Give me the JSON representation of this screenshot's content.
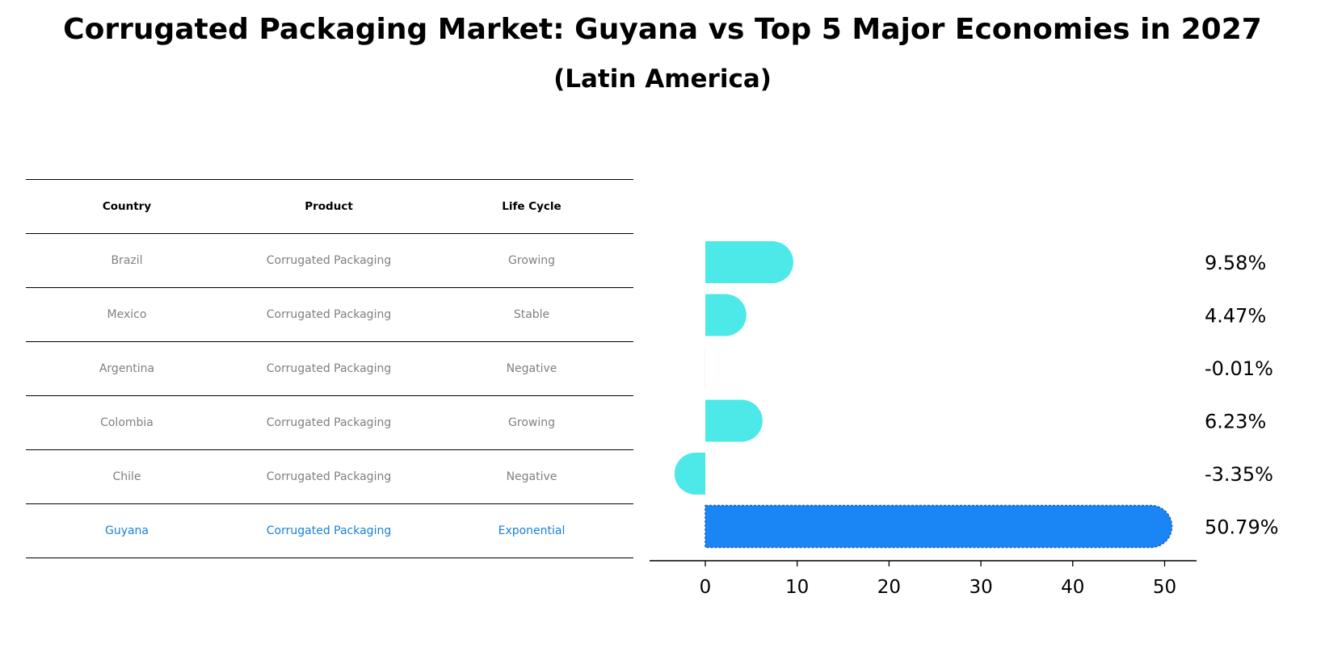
{
  "title": "Corrugated Packaging Market: Guyana vs Top 5 Major Economies in 2027",
  "subtitle": "(Latin America)",
  "table": {
    "headers": [
      "Country",
      "Product",
      "Life Cycle"
    ],
    "rows": [
      [
        "Brazil",
        "Corrugated Packaging",
        "Growing"
      ],
      [
        "Mexico",
        "Corrugated Packaging",
        "Stable"
      ],
      [
        "Argentina",
        "Corrugated Packaging",
        "Negative"
      ],
      [
        "Colombia",
        "Corrugated Packaging",
        "Growing"
      ],
      [
        "Chile",
        "Corrugated Packaging",
        "Negative"
      ],
      [
        "Guyana",
        "Corrugated Packaging",
        "Exponential"
      ]
    ]
  },
  "colors": {
    "bar": "#4de8e8",
    "highlight": "#1a85f5",
    "highlight_text": "#1a80d9",
    "body_text": "#808080"
  },
  "chart_data": {
    "type": "bar",
    "orientation": "horizontal",
    "categories": [
      "Brazil",
      "Mexico",
      "Argentina",
      "Colombia",
      "Chile",
      "Guyana"
    ],
    "values": [
      9.58,
      4.47,
      -0.01,
      6.23,
      -3.35,
      50.79
    ],
    "labels": [
      "9.58%",
      "4.47%",
      "-0.01%",
      "6.23%",
      "-3.35%",
      "50.79%"
    ],
    "highlight": "Guyana",
    "xlim": [
      -6,
      53.5
    ],
    "xticks": [
      0,
      10,
      20,
      30,
      40,
      50
    ],
    "title": "Corrugated Packaging Market: Guyana vs Top 5 Major Economies in 2027",
    "xlabel": "",
    "ylabel": ""
  }
}
